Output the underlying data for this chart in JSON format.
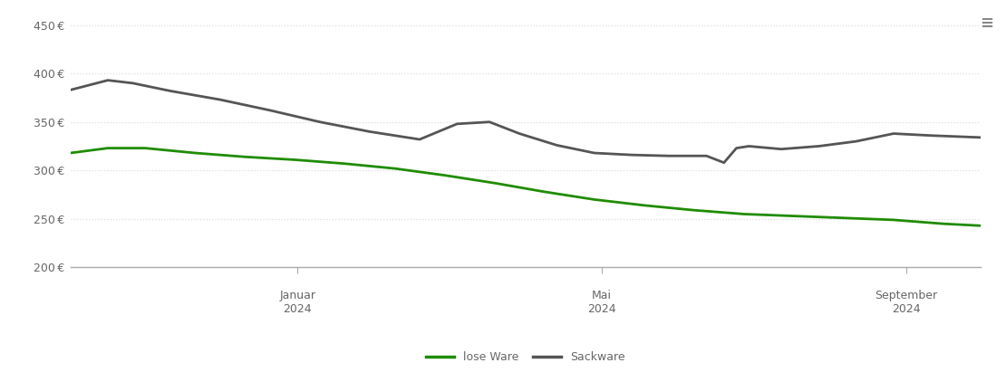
{
  "lose_ware_x": [
    0,
    15,
    30,
    50,
    70,
    90,
    110,
    130,
    150,
    170,
    190,
    210,
    230,
    250,
    270,
    290,
    310,
    330,
    350,
    365
  ],
  "lose_ware_y": [
    318,
    323,
    323,
    318,
    314,
    311,
    307,
    302,
    295,
    287,
    278,
    270,
    264,
    259,
    255,
    253,
    251,
    249,
    245,
    243
  ],
  "sackware_x": [
    0,
    15,
    25,
    40,
    60,
    80,
    100,
    120,
    140,
    155,
    168,
    180,
    195,
    210,
    225,
    240,
    255,
    262,
    267,
    272,
    285,
    300,
    315,
    330,
    345,
    365
  ],
  "sackware_y": [
    383,
    393,
    390,
    382,
    373,
    362,
    350,
    340,
    332,
    348,
    350,
    338,
    326,
    318,
    316,
    315,
    315,
    308,
    323,
    325,
    322,
    325,
    330,
    338,
    336,
    334
  ],
  "x_min": 0,
  "x_max": 365,
  "y_min": 200,
  "y_max": 460,
  "yticks": [
    200,
    250,
    300,
    350,
    400,
    450
  ],
  "x_tick_positions": [
    91,
    213,
    335
  ],
  "x_tick_labels_line1": [
    "Januar",
    "Mai",
    "September"
  ],
  "x_tick_labels_line2": [
    "2024",
    "2024",
    "2024"
  ],
  "lose_ware_color": "#1f8c00",
  "sackware_color": "#555555",
  "grid_color": "#dddddd",
  "axis_color": "#aaaaaa",
  "bg_color": "#ffffff",
  "legend_labels": [
    "lose Ware",
    "Sackware"
  ],
  "line_width": 2.0,
  "font_color": "#666666",
  "tick_label_fontsize": 9
}
